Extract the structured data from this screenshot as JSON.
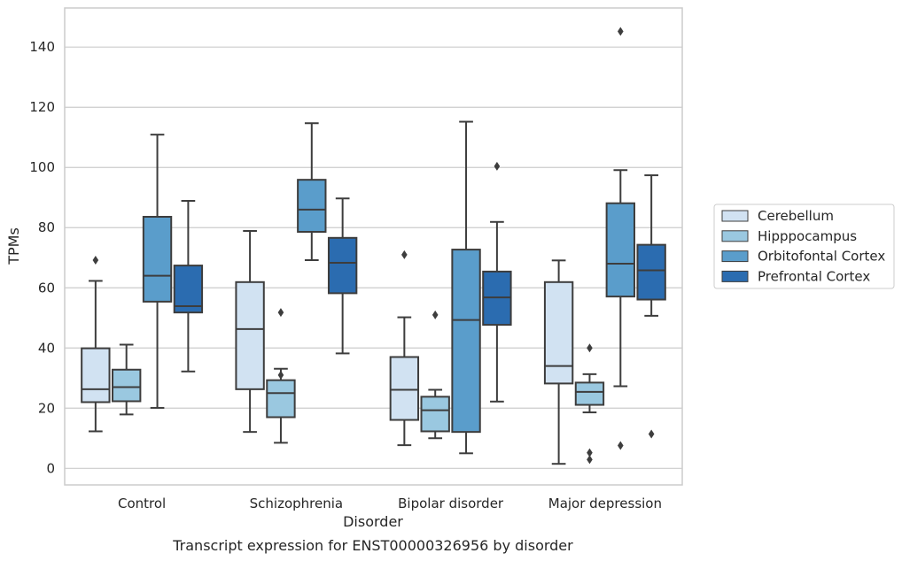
{
  "caption": "Transcript expression for ENST00000326956 by disorder",
  "chart_data": {
    "type": "box",
    "title": "",
    "xlabel": "Disorder",
    "ylabel": "TPMs",
    "ylim": [
      -5.5,
      153
    ],
    "yticks": [
      0,
      20,
      40,
      60,
      80,
      100,
      120,
      140
    ],
    "categories": [
      "Control",
      "Schizophrenia",
      "Bipolar disorder",
      "Major depression"
    ],
    "grid": "horizontal",
    "legend_position": "right",
    "series": [
      {
        "name": "Cerebellum",
        "color": "#d1e2f2",
        "boxes": [
          {
            "whisker_low": 12.3,
            "q1": 22.0,
            "median": 26.3,
            "q3": 39.9,
            "whisker_high": 62.3,
            "outliers": [
              69.2
            ]
          },
          {
            "whisker_low": 12.1,
            "q1": 26.3,
            "median": 46.3,
            "q3": 61.9,
            "whisker_high": 78.9,
            "outliers": []
          },
          {
            "whisker_low": 7.7,
            "q1": 16.1,
            "median": 26.1,
            "q3": 37.0,
            "whisker_high": 50.2,
            "outliers": [
              71.0
            ]
          },
          {
            "whisker_low": 1.5,
            "q1": 28.2,
            "median": 34.0,
            "q3": 61.9,
            "whisker_high": 69.1,
            "outliers": []
          }
        ]
      },
      {
        "name": "Hipppocampus",
        "color": "#9ac8e0",
        "boxes": [
          {
            "whisker_low": 17.9,
            "q1": 22.3,
            "median": 27.0,
            "q3": 32.8,
            "whisker_high": 41.1,
            "outliers": []
          },
          {
            "whisker_low": 8.5,
            "q1": 17.0,
            "median": 25.0,
            "q3": 29.3,
            "whisker_high": 33.1,
            "outliers": [
              51.8,
              31.0
            ]
          },
          {
            "whisker_low": 10.0,
            "q1": 12.3,
            "median": 19.3,
            "q3": 23.8,
            "whisker_high": 26.1,
            "outliers": [
              51.0
            ]
          },
          {
            "whisker_low": 18.6,
            "q1": 21.1,
            "median": 25.4,
            "q3": 28.5,
            "whisker_high": 31.3,
            "outliers": [
              40.0,
              5.2,
              2.9
            ]
          }
        ]
      },
      {
        "name": "Orbitofontal Cortex",
        "color": "#5a9dcb",
        "boxes": [
          {
            "whisker_low": 20.1,
            "q1": 55.4,
            "median": 64.0,
            "q3": 83.6,
            "whisker_high": 110.9,
            "outliers": []
          },
          {
            "whisker_low": 69.2,
            "q1": 78.6,
            "median": 86.0,
            "q3": 95.9,
            "whisker_high": 114.7,
            "outliers": []
          },
          {
            "whisker_low": 5.0,
            "q1": 12.1,
            "median": 49.3,
            "q3": 72.7,
            "whisker_high": 115.2,
            "outliers": []
          },
          {
            "whisker_low": 27.3,
            "q1": 57.1,
            "median": 68.0,
            "q3": 88.1,
            "whisker_high": 99.1,
            "outliers": [
              145.2,
              7.6
            ]
          }
        ]
      },
      {
        "name": "Prefrontal Cortex",
        "color": "#2b6cb0",
        "boxes": [
          {
            "whisker_low": 32.2,
            "q1": 51.8,
            "median": 53.9,
            "q3": 67.4,
            "whisker_high": 88.9,
            "outliers": []
          },
          {
            "whisker_low": 38.2,
            "q1": 58.2,
            "median": 68.3,
            "q3": 76.6,
            "whisker_high": 89.7,
            "outliers": []
          },
          {
            "whisker_low": 22.2,
            "q1": 47.7,
            "median": 56.8,
            "q3": 65.4,
            "whisker_high": 81.9,
            "outliers": [
              100.4
            ]
          },
          {
            "whisker_low": 50.7,
            "q1": 56.1,
            "median": 65.8,
            "q3": 74.3,
            "whisker_high": 97.4,
            "outliers": [
              11.4
            ]
          }
        ]
      }
    ]
  }
}
